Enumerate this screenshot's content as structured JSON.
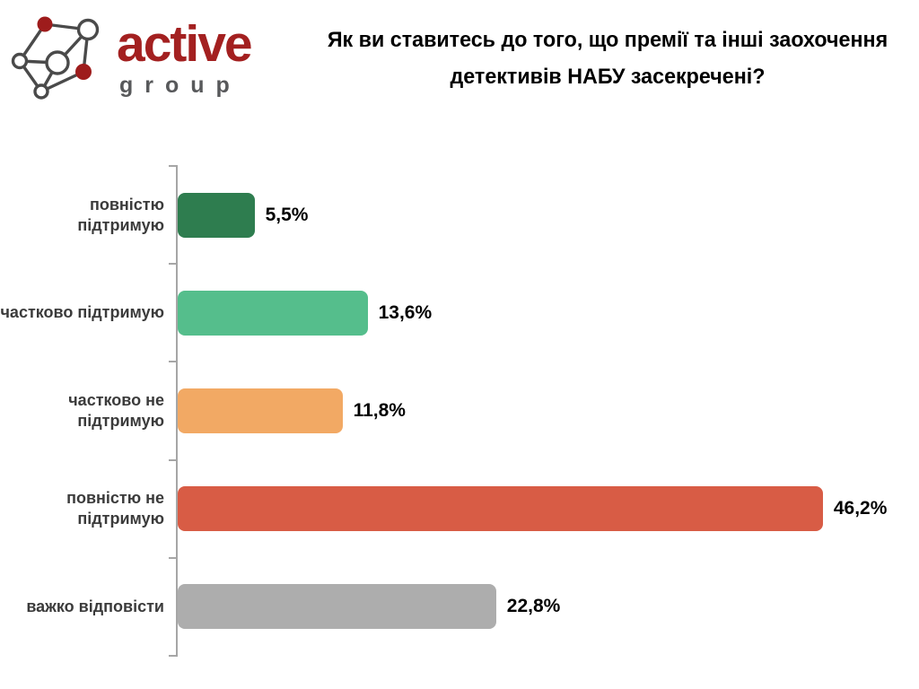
{
  "header": {
    "logo": {
      "brand": "active",
      "sub": "group",
      "brand_color": "#A32020",
      "sub_color": "#58595B",
      "icon": "network-graph-icon",
      "icon_line_color": "#4a4a4a",
      "icon_node_color": "#9E1C1C"
    },
    "title_line1": "Як ви ставитесь до того, що премії та інші заохочення",
    "title_line2": "детективів НАБУ засекречені?"
  },
  "chart_data": {
    "type": "bar",
    "orientation": "horizontal",
    "title": "Як ви ставитесь до того, що премії та інші заохочення детективів НАБУ засекречені?",
    "categories": [
      "повністю підтримую",
      "частково підтримую",
      "частково не підтримую",
      "повністю не підтримую",
      "важко відповісти"
    ],
    "values": [
      5.5,
      13.6,
      11.8,
      46.2,
      22.8
    ],
    "value_labels": [
      "5,5%",
      "13,6%",
      "11,8%",
      "46,2%",
      "22,8%"
    ],
    "colors": [
      "#2E7D4F",
      "#55BE8C",
      "#F2A964",
      "#D85C45",
      "#ADADAD"
    ],
    "xlabel": "",
    "ylabel": "",
    "xlim": [
      0,
      50
    ],
    "grid": false,
    "legend": false,
    "axis_color": "#A6A6A6",
    "label_color": "#3b3b3b",
    "value_label_color": "#000000"
  }
}
